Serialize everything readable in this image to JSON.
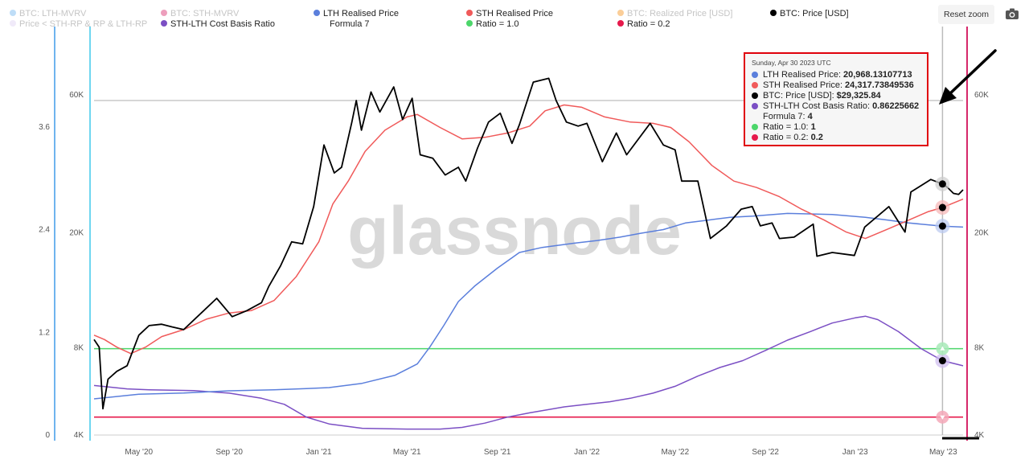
{
  "toolbar": {
    "reset_zoom_label": "Reset zoom",
    "camera_icon": "camera-icon"
  },
  "legend": [
    {
      "label": "BTC: LTH-MVRV",
      "color": "#6fb4ee",
      "active": false
    },
    {
      "label": "Price < STH-RP & RP & LTH-RP",
      "color": "#ddd0f2",
      "active": false
    },
    {
      "label": "BTC: STH-MVRV",
      "color": "#d6286a",
      "active": false
    },
    {
      "label": "STH-LTH Cost Basis Ratio",
      "color": "#7b4fc4",
      "active": true
    },
    {
      "label": "LTH Realised Price",
      "color": "#5b7fdc",
      "active": true
    },
    {
      "label": "Formula 7",
      "color": "",
      "active": true
    },
    {
      "label": "STH Realised Price",
      "color": "#f05a5a",
      "active": true
    },
    {
      "label": "Ratio = 1.0",
      "color": "#4cd66a",
      "active": true
    },
    {
      "label": "BTC: Realized Price [USD]",
      "color": "#f7931a",
      "active": false
    },
    {
      "label": "Ratio = 0.2",
      "color": "#e6194b",
      "active": true
    },
    {
      "label": "BTC: Price [USD]",
      "color": "#000000",
      "active": true
    }
  ],
  "watermark": "glassnode",
  "tooltip": {
    "date": "Sunday, Apr 30 2023 UTC",
    "rows": [
      {
        "label": "LTH Realised Price:",
        "value": "20,968.13107713",
        "color": "#5b7fdc"
      },
      {
        "label": "STH Realised Price:",
        "value": "24,317.73849536",
        "color": "#f05a5a"
      },
      {
        "label": "BTC: Price [USD]:",
        "value": "$29,325.84",
        "color": "#000000"
      },
      {
        "label": "STH-LTH Cost Basis Ratio:",
        "value": "0.86225662",
        "color": "#7b4fc4"
      },
      {
        "label": "Formula 7:",
        "value": "4",
        "color": ""
      },
      {
        "label": "Ratio = 1.0:",
        "value": "1",
        "color": "#4cd66a"
      },
      {
        "label": "Ratio = 0.2:",
        "value": "0.2",
        "color": "#e6194b"
      }
    ]
  },
  "chart_data": {
    "type": "line",
    "x_ticks": [
      "May '20",
      "Sep '20",
      "Jan '21",
      "May '21",
      "Sep '21",
      "Jan '22",
      "May '22",
      "Sep '22",
      "Jan '23",
      "May '23"
    ],
    "left_axis_ticks": [
      "0",
      "1.2",
      "2.4",
      "3.6"
    ],
    "price_axis_ticks_left": [
      "4K",
      "8K",
      "20K",
      "60K"
    ],
    "price_axis_ticks_right": [
      "4K",
      "8K",
      "20K",
      "60K"
    ],
    "price_scale": "log",
    "price_range": [
      4000,
      80000
    ],
    "ratio_range": [
      0,
      4.4
    ],
    "hover_date": "2023-04-30",
    "series": [
      {
        "name": "BTC: Price [USD]",
        "color": "#000000",
        "axis": "price",
        "points": [
          [
            "2020-03-01",
            8500
          ],
          [
            "2020-03-08",
            8000
          ],
          [
            "2020-03-13",
            4900
          ],
          [
            "2020-03-20",
            6200
          ],
          [
            "2020-04-01",
            6600
          ],
          [
            "2020-04-15",
            6900
          ],
          [
            "2020-05-01",
            8800
          ],
          [
            "2020-05-15",
            9500
          ],
          [
            "2020-06-01",
            9600
          ],
          [
            "2020-06-15",
            9400
          ],
          [
            "2020-07-01",
            9200
          ],
          [
            "2020-07-25",
            10500
          ],
          [
            "2020-08-15",
            11800
          ],
          [
            "2020-09-05",
            10200
          ],
          [
            "2020-09-25",
            10700
          ],
          [
            "2020-10-15",
            11400
          ],
          [
            "2020-10-25",
            13000
          ],
          [
            "2020-11-10",
            15300
          ],
          [
            "2020-11-25",
            18500
          ],
          [
            "2020-12-10",
            18200
          ],
          [
            "2020-12-25",
            24500
          ],
          [
            "2021-01-08",
            40000
          ],
          [
            "2021-01-22",
            32000
          ],
          [
            "2021-02-01",
            33500
          ],
          [
            "2021-02-15",
            48000
          ],
          [
            "2021-02-21",
            57000
          ],
          [
            "2021-02-28",
            45000
          ],
          [
            "2021-03-13",
            61000
          ],
          [
            "2021-03-25",
            52000
          ],
          [
            "2021-04-13",
            63500
          ],
          [
            "2021-04-25",
            49000
          ],
          [
            "2021-05-08",
            58000
          ],
          [
            "2021-05-19",
            37000
          ],
          [
            "2021-06-05",
            36000
          ],
          [
            "2021-06-22",
            31500
          ],
          [
            "2021-07-10",
            33500
          ],
          [
            "2021-07-20",
            30000
          ],
          [
            "2021-08-05",
            39000
          ],
          [
            "2021-08-20",
            48000
          ],
          [
            "2021-09-05",
            51500
          ],
          [
            "2021-09-21",
            40500
          ],
          [
            "2021-10-01",
            47000
          ],
          [
            "2021-10-20",
            66000
          ],
          [
            "2021-11-10",
            68000
          ],
          [
            "2021-11-20",
            57000
          ],
          [
            "2021-12-04",
            48000
          ],
          [
            "2021-12-20",
            46500
          ],
          [
            "2022-01-01",
            47500
          ],
          [
            "2022-01-22",
            35000
          ],
          [
            "2022-02-10",
            44000
          ],
          [
            "2022-02-24",
            37000
          ],
          [
            "2022-03-28",
            47500
          ],
          [
            "2022-04-15",
            40000
          ],
          [
            "2022-05-01",
            38500
          ],
          [
            "2022-05-10",
            30000
          ],
          [
            "2022-06-01",
            30000
          ],
          [
            "2022-06-18",
            19000
          ],
          [
            "2022-07-10",
            21000
          ],
          [
            "2022-07-30",
            24000
          ],
          [
            "2022-08-14",
            24500
          ],
          [
            "2022-08-25",
            21000
          ],
          [
            "2022-09-10",
            21500
          ],
          [
            "2022-09-20",
            19000
          ],
          [
            "2022-10-10",
            19200
          ],
          [
            "2022-11-05",
            21300
          ],
          [
            "2022-11-10",
            16500
          ],
          [
            "2022-12-01",
            17000
          ],
          [
            "2022-12-31",
            16600
          ],
          [
            "2023-01-14",
            20800
          ],
          [
            "2023-02-16",
            24500
          ],
          [
            "2023-03-10",
            20000
          ],
          [
            "2023-03-18",
            27500
          ],
          [
            "2023-04-14",
            30400
          ],
          [
            "2023-04-30",
            29325.84
          ],
          [
            "2023-05-07",
            28500
          ],
          [
            "2023-05-15",
            27200
          ],
          [
            "2023-05-22",
            27000
          ],
          [
            "2023-05-28",
            28000
          ]
        ]
      },
      {
        "name": "STH Realised Price",
        "color": "#f05a5a",
        "axis": "price",
        "points": [
          [
            "2020-03-01",
            8800
          ],
          [
            "2020-03-15",
            8500
          ],
          [
            "2020-04-01",
            8000
          ],
          [
            "2020-04-20",
            7600
          ],
          [
            "2020-05-10",
            8000
          ],
          [
            "2020-06-01",
            8700
          ],
          [
            "2020-07-01",
            9200
          ],
          [
            "2020-08-01",
            10000
          ],
          [
            "2020-09-01",
            10500
          ],
          [
            "2020-10-01",
            10700
          ],
          [
            "2020-11-01",
            11600
          ],
          [
            "2020-12-01",
            14000
          ],
          [
            "2021-01-01",
            18500
          ],
          [
            "2021-01-20",
            25000
          ],
          [
            "2021-02-10",
            30000
          ],
          [
            "2021-03-05",
            38000
          ],
          [
            "2021-04-01",
            45000
          ],
          [
            "2021-05-01",
            50000
          ],
          [
            "2021-05-15",
            51000
          ],
          [
            "2021-06-15",
            46000
          ],
          [
            "2021-07-15",
            42000
          ],
          [
            "2021-08-15",
            42500
          ],
          [
            "2021-09-15",
            44000
          ],
          [
            "2021-10-15",
            46500
          ],
          [
            "2021-11-05",
            52500
          ],
          [
            "2021-12-01",
            55000
          ],
          [
            "2021-12-25",
            54000
          ],
          [
            "2022-01-25",
            50000
          ],
          [
            "2022-03-01",
            48000
          ],
          [
            "2022-04-01",
            47500
          ],
          [
            "2022-04-25",
            46000
          ],
          [
            "2022-05-20",
            41000
          ],
          [
            "2022-06-20",
            34000
          ],
          [
            "2022-07-20",
            30000
          ],
          [
            "2022-08-20",
            28500
          ],
          [
            "2022-09-20",
            26500
          ],
          [
            "2022-10-20",
            24000
          ],
          [
            "2022-11-20",
            22000
          ],
          [
            "2022-12-20",
            20000
          ],
          [
            "2023-01-15",
            19000
          ],
          [
            "2023-02-15",
            20500
          ],
          [
            "2023-03-15",
            22000
          ],
          [
            "2023-04-10",
            23500
          ],
          [
            "2023-04-30",
            24317.74
          ],
          [
            "2023-05-28",
            26000
          ]
        ]
      },
      {
        "name": "LTH Realised Price",
        "color": "#5b7fdc",
        "axis": "price",
        "points": [
          [
            "2020-03-01",
            5300
          ],
          [
            "2020-05-01",
            5500
          ],
          [
            "2020-07-01",
            5550
          ],
          [
            "2020-09-01",
            5650
          ],
          [
            "2020-11-01",
            5700
          ],
          [
            "2020-12-15",
            5750
          ],
          [
            "2021-01-15",
            5800
          ],
          [
            "2021-03-01",
            6000
          ],
          [
            "2021-04-15",
            6400
          ],
          [
            "2021-05-15",
            7000
          ],
          [
            "2021-06-01",
            8000
          ],
          [
            "2021-06-20",
            9500
          ],
          [
            "2021-07-10",
            11500
          ],
          [
            "2021-08-01",
            13000
          ],
          [
            "2021-09-01",
            15000
          ],
          [
            "2021-10-01",
            17000
          ],
          [
            "2021-11-01",
            17700
          ],
          [
            "2021-12-15",
            18300
          ],
          [
            "2022-01-15",
            18700
          ],
          [
            "2022-02-15",
            19200
          ],
          [
            "2022-03-15",
            19800
          ],
          [
            "2022-04-15",
            20400
          ],
          [
            "2022-05-15",
            21500
          ],
          [
            "2022-06-15",
            22000
          ],
          [
            "2022-07-15",
            22500
          ],
          [
            "2022-08-15",
            22700
          ],
          [
            "2022-10-01",
            23200
          ],
          [
            "2022-12-01",
            23000
          ],
          [
            "2023-01-15",
            22500
          ],
          [
            "2023-02-15",
            22000
          ],
          [
            "2023-03-15",
            21500
          ],
          [
            "2023-04-30",
            20968.13
          ],
          [
            "2023-05-28",
            20800
          ]
        ]
      },
      {
        "name": "STH-LTH Cost Basis Ratio",
        "color": "#7b4fc4",
        "axis": "ratio",
        "points": [
          [
            "2020-03-01",
            0.57
          ],
          [
            "2020-04-15",
            0.53
          ],
          [
            "2020-05-15",
            0.52
          ],
          [
            "2020-07-15",
            0.51
          ],
          [
            "2020-09-01",
            0.48
          ],
          [
            "2020-10-15",
            0.42
          ],
          [
            "2020-11-15",
            0.35
          ],
          [
            "2020-12-15",
            0.2
          ],
          [
            "2021-01-15",
            0.12
          ],
          [
            "2021-03-01",
            0.07
          ],
          [
            "2021-05-01",
            0.06
          ],
          [
            "2021-06-15",
            0.06
          ],
          [
            "2021-07-15",
            0.08
          ],
          [
            "2021-08-15",
            0.13
          ],
          [
            "2021-09-15",
            0.2
          ],
          [
            "2021-10-15",
            0.25
          ],
          [
            "2021-12-01",
            0.32
          ],
          [
            "2022-01-01",
            0.35
          ],
          [
            "2022-02-01",
            0.38
          ],
          [
            "2022-03-01",
            0.42
          ],
          [
            "2022-04-01",
            0.48
          ],
          [
            "2022-05-01",
            0.56
          ],
          [
            "2022-06-01",
            0.68
          ],
          [
            "2022-07-01",
            0.78
          ],
          [
            "2022-08-01",
            0.86
          ],
          [
            "2022-09-01",
            0.98
          ],
          [
            "2022-10-01",
            1.1
          ],
          [
            "2022-11-01",
            1.2
          ],
          [
            "2022-12-01",
            1.3
          ],
          [
            "2023-01-01",
            1.36
          ],
          [
            "2023-01-15",
            1.38
          ],
          [
            "2023-02-01",
            1.34
          ],
          [
            "2023-03-01",
            1.2
          ],
          [
            "2023-04-01",
            1.0
          ],
          [
            "2023-04-30",
            0.86
          ],
          [
            "2023-05-28",
            0.8
          ]
        ]
      },
      {
        "name": "Ratio = 1.0",
        "color": "#4cd66a",
        "axis": "ratio",
        "constant": 1.0
      },
      {
        "name": "Ratio = 0.2",
        "color": "#e6194b",
        "axis": "ratio",
        "constant": 0.2
      }
    ]
  }
}
